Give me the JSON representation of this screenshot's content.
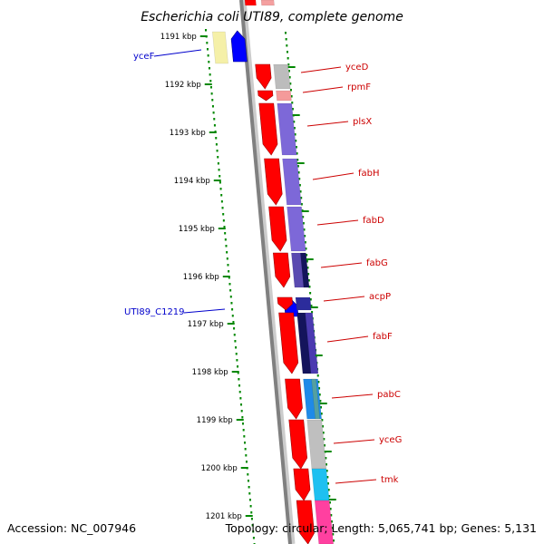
{
  "title": "Escherichia coli UTI89, complete genome",
  "footer": {
    "accession": "Accession: NC_007946",
    "topology": "Topology: circular; Length: 5,065,741 bp; Genes: 5,131"
  },
  "colors": {
    "forward_label": "#0000cc",
    "reverse_label": "#cc0000",
    "tick": "#008800",
    "backbone": "#808080",
    "cds_arrow": "#ff0000",
    "forward_arrow": "#0000ff"
  },
  "scale": {
    "unit": "kbp",
    "ticks": [
      {
        "label": "1191 kbp"
      },
      {
        "label": "1192 kbp"
      },
      {
        "label": "1193 kbp"
      },
      {
        "label": "1194 kbp"
      },
      {
        "label": "1195 kbp"
      },
      {
        "label": "1196 kbp"
      },
      {
        "label": "1197 kbp"
      },
      {
        "label": "1198 kbp"
      },
      {
        "label": "1199 kbp"
      },
      {
        "label": "1200 kbp"
      },
      {
        "label": "1201 kbp"
      }
    ]
  },
  "genes_forward": [
    {
      "name": "yceF"
    },
    {
      "name": "UTI89_C1219"
    }
  ],
  "genes_reverse": [
    {
      "name": "yceD"
    },
    {
      "name": "rpmF"
    },
    {
      "name": "plsX"
    },
    {
      "name": "fabH"
    },
    {
      "name": "fabD"
    },
    {
      "name": "fabG"
    },
    {
      "name": "acpP"
    },
    {
      "name": "fabF"
    },
    {
      "name": "pabC"
    },
    {
      "name": "yceG"
    },
    {
      "name": "tmk"
    }
  ]
}
